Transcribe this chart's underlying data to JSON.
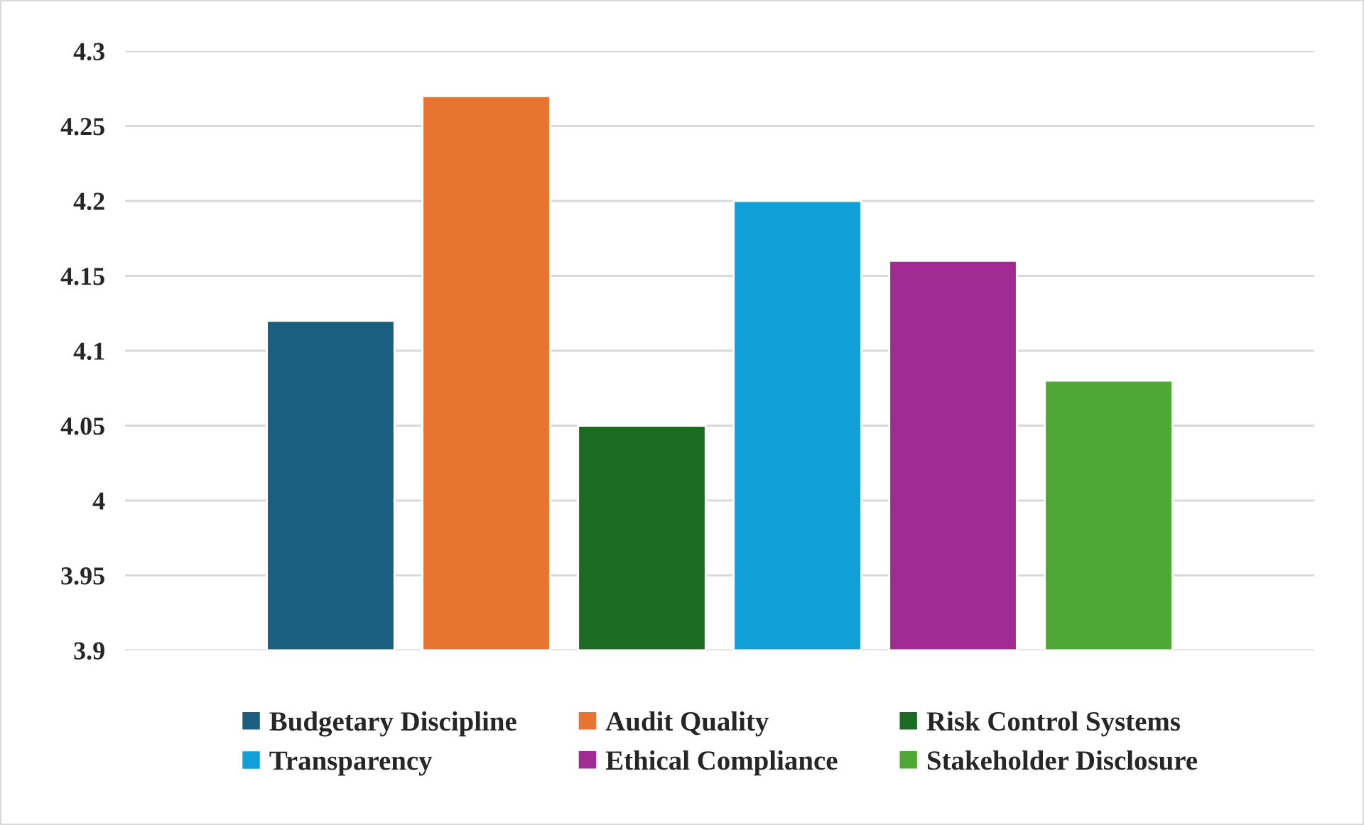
{
  "chart_data": {
    "type": "bar",
    "categories": [
      null
    ],
    "series": [
      {
        "name": "Budgetary Discipline",
        "color": "#1a5f80",
        "values": [
          4.12
        ]
      },
      {
        "name": "Audit Quality",
        "color": "#e97432",
        "values": [
          4.27
        ]
      },
      {
        "name": "Risk Control Systems",
        "color": "#1c6b23",
        "values": [
          4.05
        ]
      },
      {
        "name": "Transparency",
        "color": "#119fd8",
        "values": [
          4.2
        ]
      },
      {
        "name": "Ethical Compliance",
        "color": "#a12b93",
        "values": [
          4.16
        ]
      },
      {
        "name": "Stakeholder Disclosure",
        "color": "#4ea833",
        "values": [
          4.08
        ]
      }
    ],
    "ylim": [
      3.9,
      4.3
    ],
    "yticks": [
      3.9,
      3.95,
      4,
      4.05,
      4.1,
      4.15,
      4.2,
      4.25,
      4.3
    ],
    "grid": "y",
    "legend": "bottom"
  }
}
